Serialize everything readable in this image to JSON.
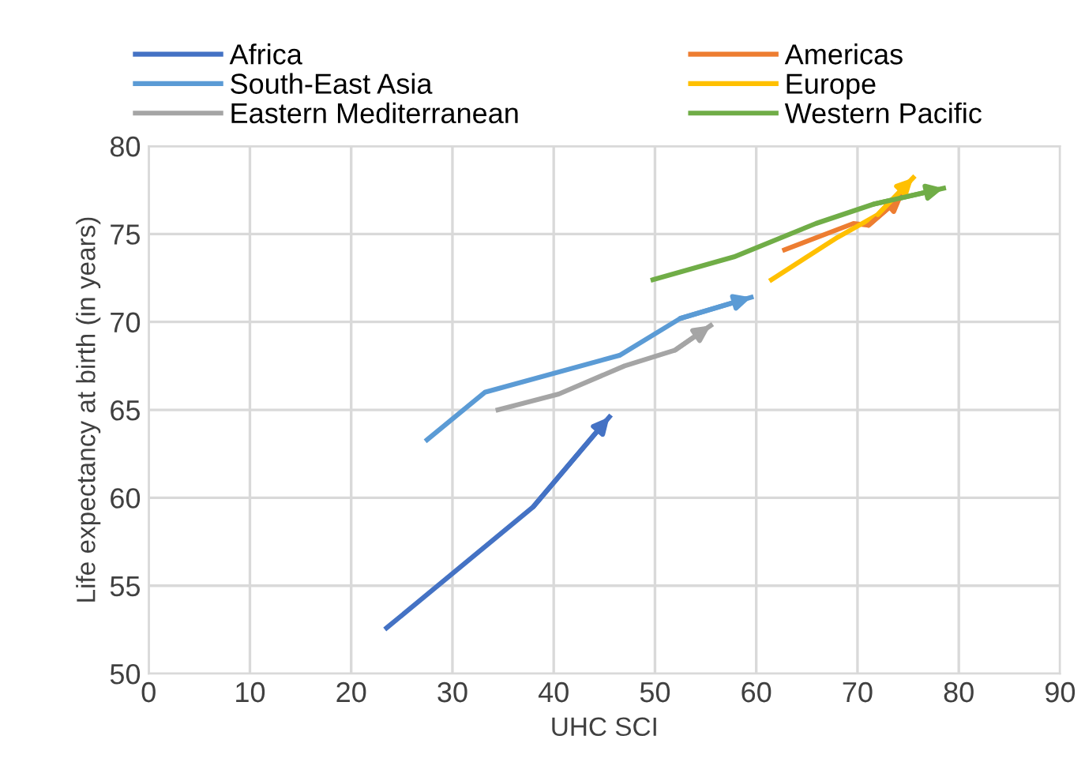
{
  "chart_data": {
    "type": "line",
    "xlabel": "UHC SCI",
    "ylabel": "Life expectancy at birth (in years)",
    "xlim": [
      0,
      90
    ],
    "xticks": [
      0,
      10,
      20,
      30,
      40,
      50,
      60,
      70,
      80,
      90
    ],
    "ylim": [
      50,
      80
    ],
    "yticks": [
      50,
      55,
      60,
      65,
      70,
      75,
      80
    ],
    "grid": true,
    "legend": "top",
    "marker": "none",
    "line_style": "solid",
    "series": [
      {
        "name": "Africa",
        "color": "#4472c4",
        "x": [
          23.5,
          38,
          45.5
        ],
        "values": [
          52.6,
          59.5,
          64.6
        ]
      },
      {
        "name": "South-East Asia",
        "color": "#5b9bd5",
        "x": [
          27.5,
          33.2,
          46.5,
          52.5,
          59.5
        ],
        "values": [
          63.3,
          66.0,
          68.1,
          70.2,
          71.4
        ]
      },
      {
        "name": "Eastern Mediterranean",
        "color": "#a5a5a5",
        "x": [
          34.5,
          40.5,
          47,
          52,
          55.5
        ],
        "values": [
          65.0,
          65.9,
          67.5,
          68.4,
          69.8
        ]
      },
      {
        "name": "Americas",
        "color": "#ed7d31",
        "x": [
          62.8,
          69.6,
          71.1,
          74.5
        ],
        "values": [
          74.1,
          75.6,
          75.5,
          77.2
        ]
      },
      {
        "name": "Europe",
        "color": "#ffc000",
        "x": [
          61.5,
          68,
          72,
          75.5
        ],
        "values": [
          72.4,
          74.8,
          76.1,
          78.2
        ]
      },
      {
        "name": "Western Pacific",
        "color": "#70ad47",
        "x": [
          49.8,
          57.8,
          65.9,
          71.6,
          78.5
        ],
        "values": [
          72.4,
          73.7,
          75.6,
          76.7,
          77.6
        ]
      }
    ]
  }
}
